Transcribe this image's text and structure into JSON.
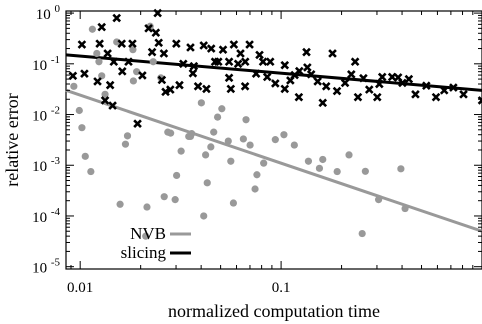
{
  "chart_data": {
    "type": "scatter",
    "title": "",
    "xlabel": "normalized computation time",
    "ylabel": "relative error",
    "xscale": "log",
    "yscale": "log",
    "xlim": [
      0.0085,
      1.0
    ],
    "ylim": [
      9e-06,
      1.1
    ],
    "x_ticks": [
      {
        "value": 0.01,
        "label": "0.01"
      },
      {
        "value": 0.1,
        "label": "0.1"
      }
    ],
    "y_ticks": [
      {
        "value": 1,
        "base": "10",
        "exp": "0"
      },
      {
        "value": 0.1,
        "base": "10",
        "exp": "-1"
      },
      {
        "value": 0.01,
        "base": "10",
        "exp": "-2"
      },
      {
        "value": 0.001,
        "base": "10",
        "exp": "-3"
      },
      {
        "value": 0.0001,
        "base": "10",
        "exp": "-4"
      },
      {
        "value": 1e-05,
        "base": "10",
        "exp": "-5"
      }
    ],
    "grid": false,
    "legend_position": "bottom-left",
    "series": [
      {
        "name": "NVB",
        "color": "#999999",
        "marker": "circle",
        "fit_line": [
          [
            0.0085,
            0.03
          ],
          [
            1.0,
            5e-05
          ]
        ],
        "points": [
          [
            0.0093,
            0.036
          ],
          [
            0.0099,
            0.012
          ],
          [
            0.0102,
            0.0055
          ],
          [
            0.0106,
            0.0015
          ],
          [
            0.0113,
            0.00075
          ],
          [
            0.0115,
            0.48
          ],
          [
            0.0121,
            0.16
          ],
          [
            0.0124,
            0.11
          ],
          [
            0.0128,
            0.058
          ],
          [
            0.0133,
            0.025
          ],
          [
            0.0152,
            0.27
          ],
          [
            0.0158,
            0.00017
          ],
          [
            0.0168,
            0.0026
          ],
          [
            0.0172,
            0.0038
          ],
          [
            0.0184,
            0.046
          ],
          [
            0.0183,
            0.19
          ],
          [
            0.0191,
            0.07
          ],
          [
            0.0223,
            0.55
          ],
          [
            0.0212,
            4e-05
          ],
          [
            0.0215,
            0.00015
          ],
          [
            0.0231,
            0.11
          ],
          [
            0.0252,
            0.053
          ],
          [
            0.0262,
            0.00024
          ],
          [
            0.0273,
            0.0045
          ],
          [
            0.0282,
            0.0043
          ],
          [
            0.0297,
            0.00021
          ],
          [
            0.0302,
            0.00063
          ],
          [
            0.0318,
            0.0019
          ],
          [
            0.0347,
            0.0037
          ],
          [
            0.0354,
            0.0037
          ],
          [
            0.0359,
            0.0042
          ],
          [
            0.0401,
            0.017
          ],
          [
            0.0412,
            0.0001
          ],
          [
            0.0421,
            0.0016
          ],
          [
            0.0429,
            0.00045
          ],
          [
            0.0447,
            0.0023
          ],
          [
            0.0462,
            0.0045
          ],
          [
            0.0483,
            0.0089
          ],
          [
            0.0507,
            0.013
          ],
          [
            0.0546,
            0.003
          ],
          [
            0.0562,
            0.0012
          ],
          [
            0.0579,
            0.00018
          ],
          [
            0.0649,
            0.0033
          ],
          [
            0.0669,
            0.0079
          ],
          [
            0.0701,
            0.0025
          ],
          [
            0.0742,
            0.00034
          ],
          [
            0.0758,
            0.00065
          ],
          [
            0.0819,
            0.0011
          ],
          [
            0.0936,
            0.0032
          ],
          [
            0.1033,
            0.004
          ],
          [
            0.1164,
            0.0025
          ],
          [
            0.1368,
            0.0012
          ],
          [
            0.1552,
            0.00087
          ],
          [
            0.1612,
            0.0013
          ],
          [
            0.1902,
            0.00075
          ],
          [
            0.2178,
            0.0016
          ],
          [
            0.2533,
            4.5e-05
          ],
          [
            0.2627,
            0.00076
          ],
          [
            0.3057,
            0.00021
          ],
          [
            0.3947,
            0.00085
          ],
          [
            0.4141,
            0.00014
          ]
        ]
      },
      {
        "name": "slicing",
        "color": "#000000",
        "marker": "x",
        "fit_line": [
          [
            0.0085,
            0.15
          ],
          [
            1.0,
            0.03
          ]
        ],
        "points": [
          [
            0.0092,
            0.058
          ],
          [
            0.0102,
            0.24
          ],
          [
            0.0105,
            0.064
          ],
          [
            0.0122,
            0.045
          ],
          [
            0.0125,
            0.25
          ],
          [
            0.0128,
            0.53
          ],
          [
            0.0137,
            0.16
          ],
          [
            0.0133,
            0.019
          ],
          [
            0.0141,
            0.038
          ],
          [
            0.0145,
            0.015
          ],
          [
            0.0152,
            0.8
          ],
          [
            0.0147,
            0.11
          ],
          [
            0.0161,
            0.25
          ],
          [
            0.0162,
            0.071
          ],
          [
            0.0174,
            0.11
          ],
          [
            0.0182,
            0.25
          ],
          [
            0.0193,
            0.0066
          ],
          [
            0.0204,
            0.059
          ],
          [
            0.0219,
            0.5
          ],
          [
            0.0228,
            0.17
          ],
          [
            0.0238,
            0.41
          ],
          [
            0.0243,
            1.0
          ],
          [
            0.0246,
            0.26
          ],
          [
            0.0255,
            0.048
          ],
          [
            0.0261,
            0.16
          ],
          [
            0.0266,
            0.028
          ],
          [
            0.0281,
            0.031
          ],
          [
            0.0301,
            0.25
          ],
          [
            0.0312,
            0.038
          ],
          [
            0.0326,
            0.1
          ],
          [
            0.0354,
            0.21
          ],
          [
            0.0364,
            0.065
          ],
          [
            0.0368,
            0.09
          ],
          [
            0.0386,
            0.036
          ],
          [
            0.0412,
            0.23
          ],
          [
            0.0425,
            0.032
          ],
          [
            0.0449,
            0.2
          ],
          [
            0.0469,
            0.11
          ],
          [
            0.0487,
            0.11
          ],
          [
            0.0514,
            0.19
          ],
          [
            0.0551,
            0.053
          ],
          [
            0.0551,
            0.11
          ],
          [
            0.0562,
            0.032
          ],
          [
            0.0582,
            0.24
          ],
          [
            0.0611,
            0.1
          ],
          [
            0.0628,
            0.16
          ],
          [
            0.0662,
            0.036
          ],
          [
            0.0663,
            0.11
          ],
          [
            0.0697,
            0.24
          ],
          [
            0.0751,
            0.064
          ],
          [
            0.0781,
            0.15
          ],
          [
            0.0813,
            0.11
          ],
          [
            0.0853,
            0.055
          ],
          [
            0.0883,
            0.11
          ],
          [
            0.0936,
            0.041
          ],
          [
            0.1043,
            0.032
          ],
          [
            0.1043,
            0.094
          ],
          [
            0.1112,
            0.047
          ],
          [
            0.1168,
            0.06
          ],
          [
            0.1226,
            0.022
          ],
          [
            0.1232,
            0.072
          ],
          [
            0.1338,
            0.17
          ],
          [
            0.1351,
            0.085
          ],
          [
            0.1412,
            0.062
          ],
          [
            0.1521,
            0.045
          ],
          [
            0.1612,
            0.017
          ],
          [
            0.1677,
            0.036
          ],
          [
            0.1803,
            0.16
          ],
          [
            0.1898,
            0.029
          ],
          [
            0.2082,
            0.042
          ],
          [
            0.2236,
            0.062
          ],
          [
            0.2336,
            0.11
          ],
          [
            0.2413,
            0.022
          ],
          [
            0.2569,
            0.052
          ],
          [
            0.2747,
            0.031
          ],
          [
            0.3011,
            0.022
          ],
          [
            0.3083,
            0.04
          ],
          [
            0.3187,
            0.055
          ],
          [
            0.3571,
            0.055
          ],
          [
            0.3824,
            0.054
          ],
          [
            0.4018,
            0.042
          ],
          [
            0.4325,
            0.05
          ],
          [
            0.4664,
            0.025
          ],
          [
            0.5283,
            0.037
          ],
          [
            0.5902,
            0.022
          ],
          [
            0.6485,
            0.03
          ],
          [
            0.7202,
            0.034
          ],
          [
            0.8092,
            0.025
          ],
          [
            1.0,
            0.019
          ]
        ]
      }
    ]
  }
}
